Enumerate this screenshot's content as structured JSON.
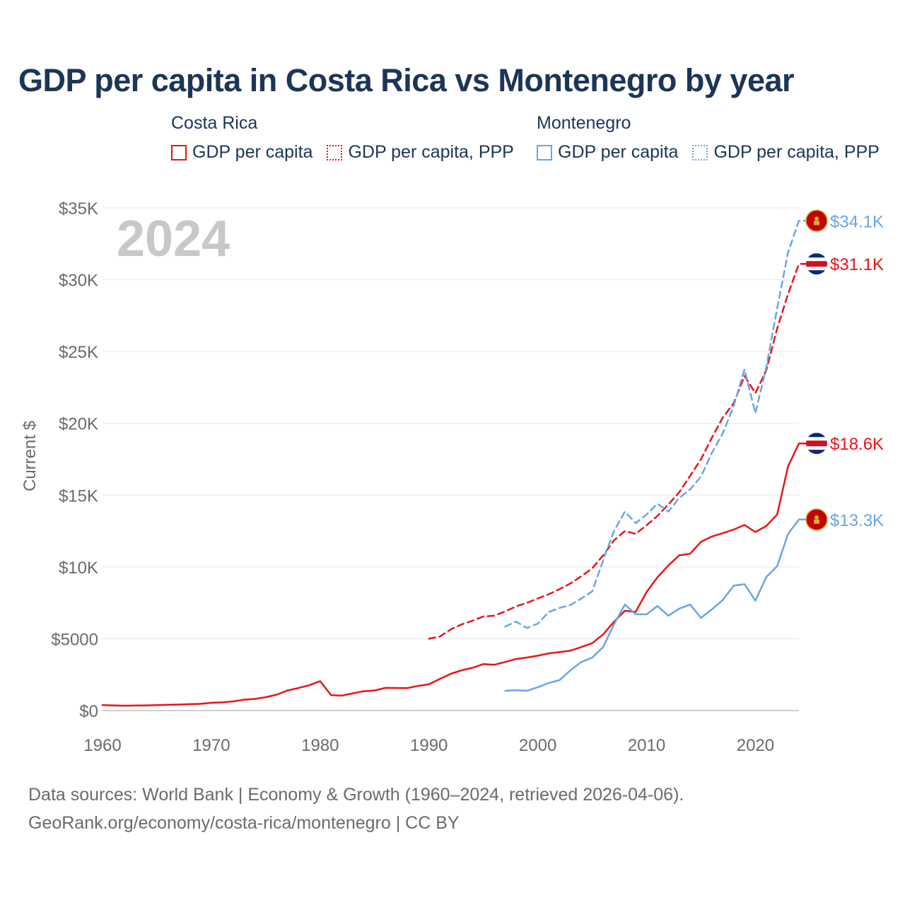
{
  "header": {
    "title": "GDP per capita in Costa Rica vs Montenegro by year"
  },
  "legend": {
    "groups": [
      {
        "name": "Costa Rica",
        "items": [
          "GDP per capita",
          "GDP per capita, PPP"
        ]
      },
      {
        "name": "Montenegro",
        "items": [
          "GDP per capita",
          "GDP per capita, PPP"
        ]
      }
    ]
  },
  "footer": {
    "line1": "Data sources: World Bank | Economy & Growth (1960–2024, retrieved 2026-04-06).",
    "line2": "GeoRank.org/economy/costa-rica/montenegro | CC BY"
  },
  "colors": {
    "costa_rica": "#e8141a",
    "montenegro": "#6aa6e0",
    "axis_text": "#6b6b6b",
    "grid": "#e6e6e6",
    "year_watermark": "#c8c8c8"
  },
  "chart_data": {
    "type": "line",
    "title": "GDP per capita in Costa Rica vs Montenegro by year",
    "xlabel": "",
    "ylabel": "Current $",
    "xlim": [
      1960,
      2024
    ],
    "ylim": [
      0,
      35000
    ],
    "grid": true,
    "year_label": "2024",
    "x_ticks": [
      1960,
      1970,
      1980,
      1990,
      2000,
      2010,
      2020
    ],
    "x_tick_labels": [
      "1960",
      "1970",
      "1980",
      "1990",
      "2000",
      "2010",
      "2020"
    ],
    "y_ticks": [
      0,
      5000,
      10000,
      15000,
      20000,
      25000,
      30000,
      35000
    ],
    "y_tick_labels": [
      "$0",
      "$5000",
      "$10K",
      "$15K",
      "$20K",
      "$25K",
      "$30K",
      "$35K"
    ],
    "series": [
      {
        "name": "Costa Rica GDP per capita",
        "country": "Costa Rica",
        "color": "#e8141a",
        "dash": "solid",
        "end_label": "$18.6K",
        "flag": "costa-rica-flag-icon",
        "x": [
          1960,
          1961,
          1962,
          1963,
          1964,
          1965,
          1966,
          1967,
          1968,
          1969,
          1970,
          1971,
          1972,
          1973,
          1974,
          1975,
          1976,
          1977,
          1978,
          1979,
          1980,
          1981,
          1982,
          1983,
          1984,
          1985,
          1986,
          1987,
          1988,
          1989,
          1990,
          1991,
          1992,
          1993,
          1994,
          1995,
          1996,
          1997,
          1998,
          1999,
          2000,
          2001,
          2002,
          2003,
          2004,
          2005,
          2006,
          2007,
          2008,
          2009,
          2010,
          2011,
          2012,
          2013,
          2014,
          2015,
          2016,
          2017,
          2018,
          2019,
          2020,
          2021,
          2022,
          2023,
          2024
        ],
        "values": [
          380,
          360,
          340,
          350,
          360,
          380,
          400,
          420,
          450,
          470,
          540,
          570,
          640,
          760,
          810,
          930,
          1110,
          1400,
          1570,
          1760,
          2050,
          1080,
          1040,
          1200,
          1350,
          1400,
          1580,
          1570,
          1560,
          1720,
          1830,
          2200,
          2560,
          2800,
          2980,
          3240,
          3190,
          3380,
          3590,
          3690,
          3820,
          3980,
          4070,
          4170,
          4420,
          4690,
          5300,
          6180,
          6950,
          6870,
          8250,
          9280,
          10100,
          10810,
          10920,
          11750,
          12120,
          12350,
          12600,
          12920,
          12430,
          12850,
          13650,
          17000,
          18600
        ]
      },
      {
        "name": "Costa Rica GDP per capita, PPP",
        "country": "Costa Rica",
        "color": "#e8141a",
        "dash": "dashed",
        "end_label": "$31.1K",
        "flag": "costa-rica-flag-icon",
        "x": [
          1990,
          1991,
          1992,
          1993,
          1994,
          1995,
          1996,
          1997,
          1998,
          1999,
          2000,
          2001,
          2002,
          2003,
          2004,
          2005,
          2006,
          2007,
          2008,
          2009,
          2010,
          2011,
          2012,
          2013,
          2014,
          2015,
          2016,
          2017,
          2018,
          2019,
          2020,
          2021,
          2022,
          2023,
          2024
        ],
        "values": [
          5000,
          5150,
          5650,
          6000,
          6250,
          6550,
          6600,
          6900,
          7250,
          7500,
          7800,
          8100,
          8450,
          8850,
          9350,
          9900,
          10800,
          11850,
          12500,
          12300,
          12900,
          13550,
          14350,
          15200,
          16350,
          17500,
          19000,
          20400,
          21400,
          23300,
          22100,
          23700,
          26600,
          29000,
          31100
        ]
      },
      {
        "name": "Montenegro GDP per capita",
        "country": "Montenegro",
        "color": "#6aa6e0",
        "dash": "solid",
        "end_label": "$13.3K",
        "flag": "montenegro-flag-icon",
        "x": [
          1997,
          1998,
          1999,
          2000,
          2001,
          2002,
          2003,
          2004,
          2005,
          2006,
          2007,
          2008,
          2009,
          2010,
          2011,
          2012,
          2013,
          2014,
          2015,
          2016,
          2017,
          2018,
          2019,
          2020,
          2021,
          2022,
          2023,
          2024
        ],
        "values": [
          1380,
          1420,
          1380,
          1620,
          1920,
          2120,
          2800,
          3380,
          3680,
          4420,
          6000,
          7380,
          6700,
          6700,
          7280,
          6600,
          7100,
          7380,
          6450,
          7050,
          7700,
          8700,
          8800,
          7650,
          9300,
          10050,
          12300,
          13300
        ]
      },
      {
        "name": "Montenegro GDP per capita, PPP",
        "country": "Montenegro",
        "color": "#6aa6e0",
        "dash": "dashed",
        "end_label": "$34.1K",
        "flag": "montenegro-flag-icon",
        "x": [
          1997,
          1998,
          1999,
          2000,
          2001,
          2002,
          2003,
          2004,
          2005,
          2006,
          2007,
          2008,
          2009,
          2010,
          2011,
          2012,
          2013,
          2014,
          2015,
          2016,
          2017,
          2018,
          2019,
          2020,
          2021,
          2022,
          2023,
          2024
        ],
        "values": [
          5850,
          6200,
          5750,
          6050,
          6850,
          7150,
          7350,
          7800,
          8300,
          10450,
          12500,
          13850,
          13050,
          13650,
          14400,
          13850,
          14800,
          15400,
          16300,
          17950,
          19300,
          21200,
          23750,
          20700,
          23900,
          28000,
          31900,
          34100
        ]
      }
    ]
  }
}
